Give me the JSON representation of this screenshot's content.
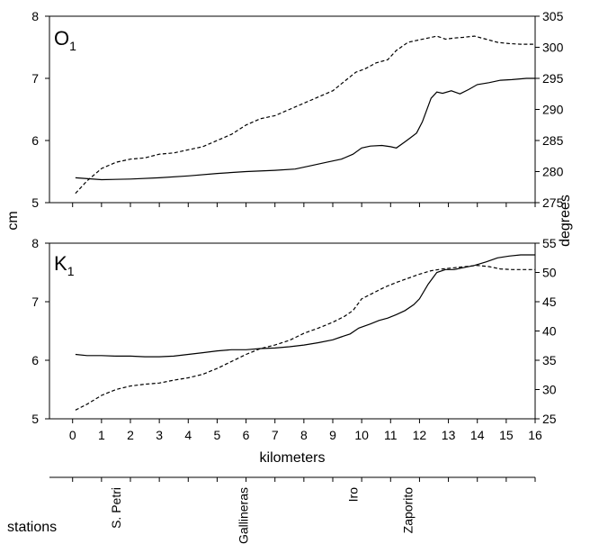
{
  "chart_data": {
    "type": "line",
    "shared": {
      "ylabel_left": "cm",
      "ylabel_right": "degrees",
      "xlabel": "kilometers",
      "x_ticks": [
        "0",
        "1",
        "2",
        "3",
        "4",
        "5",
        "6",
        "7",
        "8",
        "9",
        "10",
        "11",
        "12",
        "13",
        "14",
        "15",
        "16"
      ],
      "grid": false,
      "legend": "none"
    },
    "panels": [
      {
        "label_main": "O",
        "label_sub": "1",
        "ylim_left": [
          5,
          8
        ],
        "ylim_right": [
          275,
          305
        ],
        "y_ticks_left": [
          "5",
          "6",
          "7",
          "8"
        ],
        "y_ticks_right": [
          "275",
          "280",
          "285",
          "290",
          "295",
          "300",
          "305"
        ],
        "series": [
          {
            "style": "solid",
            "axis": "left",
            "x": [
              0.1,
              1.0,
              2.0,
              3.0,
              4.0,
              5.0,
              6.0,
              7.0,
              7.7,
              8.3,
              8.8,
              9.3,
              9.7,
              10.0,
              10.3,
              10.7,
              11.0,
              11.2,
              11.5,
              11.7,
              11.9,
              12.1,
              12.4,
              12.6,
              12.8,
              13.1,
              13.4,
              13.7,
              14.0,
              14.4,
              14.8,
              15.2,
              15.7,
              16.0
            ],
            "y": [
              5.4,
              5.37,
              5.38,
              5.4,
              5.43,
              5.47,
              5.5,
              5.52,
              5.54,
              5.6,
              5.65,
              5.7,
              5.78,
              5.88,
              5.91,
              5.92,
              5.9,
              5.88,
              5.98,
              6.05,
              6.12,
              6.3,
              6.68,
              6.78,
              6.76,
              6.8,
              6.75,
              6.82,
              6.9,
              6.93,
              6.97,
              6.98,
              7.0,
              7.0
            ]
          },
          {
            "style": "dashed",
            "axis": "right",
            "x": [
              0.1,
              0.5,
              1.0,
              1.5,
              2.0,
              2.5,
              3.0,
              3.5,
              4.0,
              4.5,
              5.0,
              5.5,
              6.0,
              6.5,
              7.0,
              7.5,
              8.0,
              8.5,
              9.0,
              9.4,
              9.8,
              10.1,
              10.5,
              10.9,
              11.2,
              11.6,
              12.0,
              12.3,
              12.6,
              12.9,
              13.2,
              13.5,
              13.9,
              14.3,
              14.7,
              15.1,
              15.5,
              16.0
            ],
            "y": [
              276.5,
              278.5,
              280.5,
              281.5,
              282.0,
              282.2,
              282.8,
              283.0,
              283.5,
              284.0,
              285.0,
              286.0,
              287.5,
              288.5,
              289.0,
              290.0,
              291.0,
              292.0,
              293.0,
              294.5,
              296.0,
              296.5,
              297.5,
              298.0,
              299.5,
              300.8,
              301.2,
              301.5,
              301.8,
              301.3,
              301.5,
              301.6,
              301.8,
              301.3,
              300.8,
              300.6,
              300.5,
              300.5
            ]
          }
        ]
      },
      {
        "label_main": "K",
        "label_sub": "1",
        "ylim_left": [
          5,
          8
        ],
        "ylim_right": [
          25,
          55
        ],
        "y_ticks_left": [
          "5",
          "6",
          "7",
          "8"
        ],
        "y_ticks_right": [
          "25",
          "30",
          "35",
          "40",
          "45",
          "50",
          "55"
        ],
        "series": [
          {
            "style": "solid",
            "axis": "left",
            "x": [
              0.1,
              0.5,
              1.0,
              1.5,
              2.0,
              2.5,
              3.0,
              3.5,
              4.0,
              4.5,
              5.0,
              5.5,
              6.0,
              6.5,
              7.0,
              7.5,
              8.0,
              8.5,
              9.0,
              9.3,
              9.6,
              9.9,
              10.3,
              10.6,
              10.9,
              11.2,
              11.5,
              11.8,
              12.0,
              12.3,
              12.6,
              12.9,
              13.2,
              13.5,
              13.9,
              14.3,
              14.7,
              15.1,
              15.5,
              16.0
            ],
            "y": [
              6.1,
              6.08,
              6.08,
              6.07,
              6.07,
              6.06,
              6.06,
              6.07,
              6.1,
              6.13,
              6.16,
              6.18,
              6.18,
              6.2,
              6.21,
              6.23,
              6.26,
              6.3,
              6.35,
              6.4,
              6.45,
              6.55,
              6.62,
              6.68,
              6.72,
              6.78,
              6.85,
              6.95,
              7.05,
              7.3,
              7.5,
              7.55,
              7.55,
              7.58,
              7.62,
              7.68,
              7.75,
              7.78,
              7.8,
              7.8
            ]
          },
          {
            "style": "dashed",
            "axis": "right",
            "x": [
              0.1,
              0.5,
              1.0,
              1.5,
              2.0,
              2.5,
              3.0,
              3.5,
              4.0,
              4.5,
              5.0,
              5.5,
              6.0,
              6.5,
              7.0,
              7.5,
              8.0,
              8.5,
              9.0,
              9.4,
              9.7,
              10.0,
              10.4,
              10.8,
              11.2,
              11.6,
              12.0,
              12.4,
              12.8,
              13.2,
              13.6,
              14.0,
              14.4,
              14.8,
              15.2,
              15.6,
              16.0
            ],
            "y": [
              26.5,
              27.5,
              29.0,
              30.0,
              30.6,
              30.9,
              31.1,
              31.6,
              32.0,
              32.6,
              33.6,
              34.8,
              36.0,
              37.0,
              37.6,
              38.4,
              39.6,
              40.5,
              41.5,
              42.5,
              43.5,
              45.5,
              46.5,
              47.5,
              48.3,
              49.0,
              49.7,
              50.3,
              50.6,
              50.8,
              51.0,
              51.2,
              51.0,
              50.6,
              50.5,
              50.5,
              50.5
            ]
          }
        ]
      }
    ],
    "stations": {
      "label": "stations",
      "names": [
        "S. Petri",
        "Gallineras",
        "Iro",
        "Zaporito"
      ],
      "km": [
        1.5,
        5.9,
        9.7,
        11.6
      ]
    }
  }
}
